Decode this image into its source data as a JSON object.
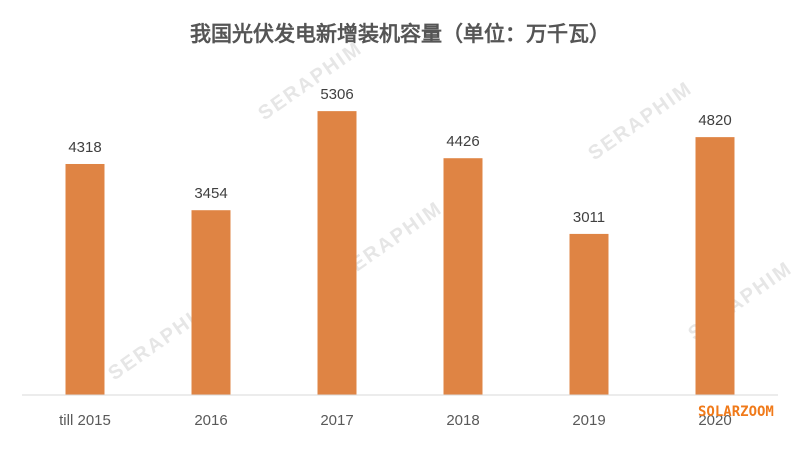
{
  "chart_data": {
    "type": "bar",
    "title": "我国光伏发电新增装机容量（单位：万千瓦）",
    "categories": [
      "till 2015",
      "2016",
      "2017",
      "2018",
      "2019",
      "2020"
    ],
    "values": [
      4318,
      3454,
      5306,
      4426,
      3011,
      4820
    ],
    "xlabel": "",
    "ylabel": "",
    "ylim": [
      0,
      6000
    ],
    "grid": false,
    "legend": "none",
    "bar_color": "#DF8444",
    "data_labels": true
  },
  "watermarks": {
    "seraphim": "SERAPHIM",
    "solarzoom": "SOLARZOOM"
  }
}
